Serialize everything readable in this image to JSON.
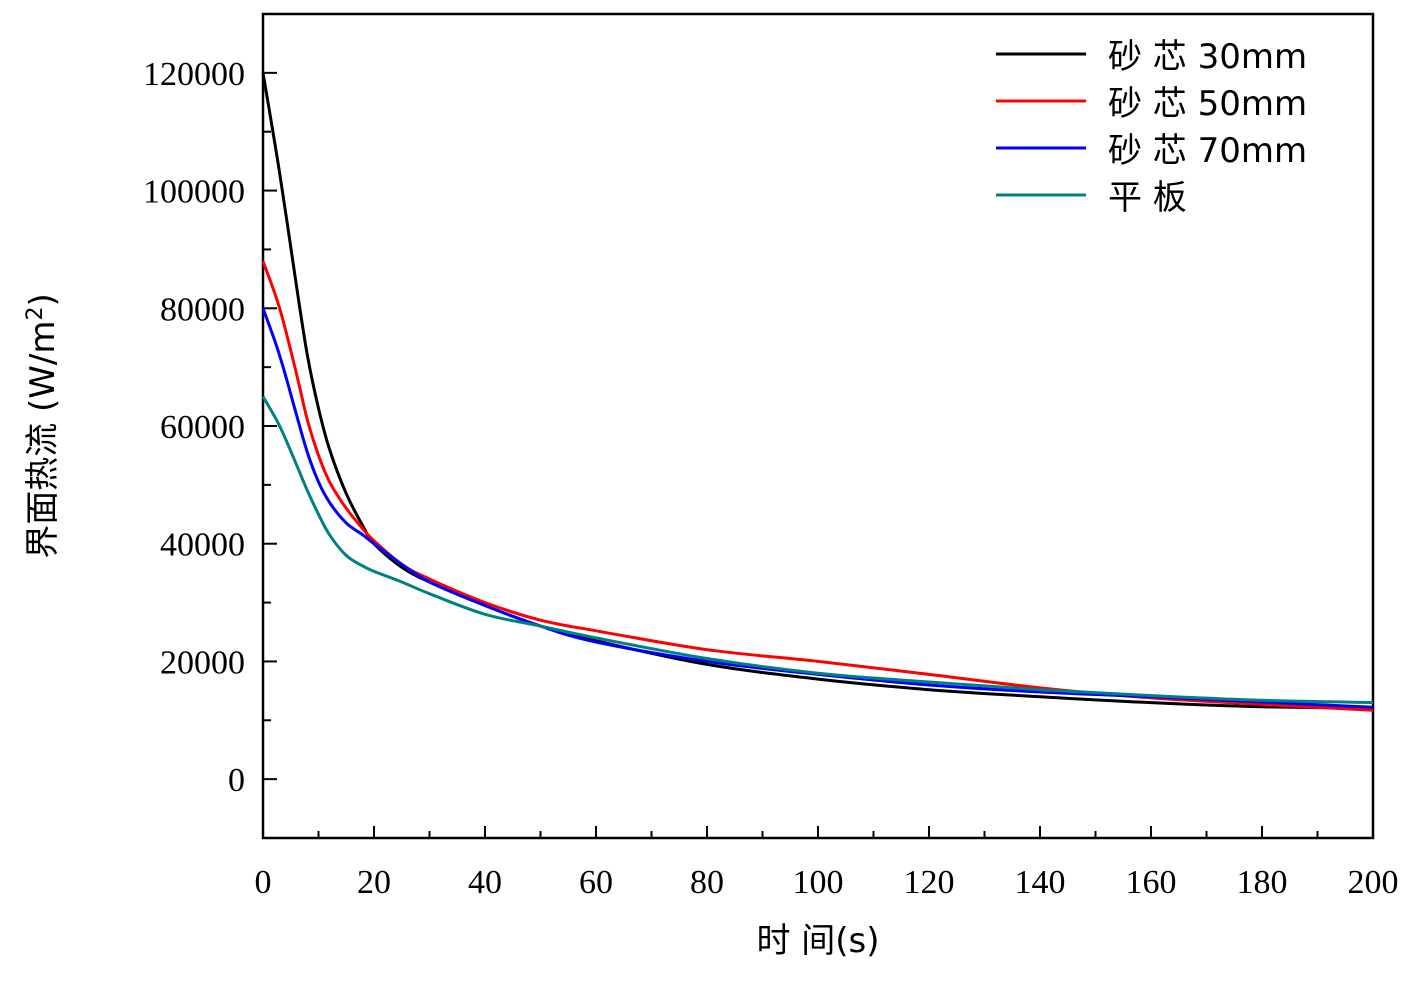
{
  "chart_data": {
    "type": "line",
    "xlabel": "时 间(s)",
    "ylabel": "界面热流 (W/m²)",
    "ylabel_parts": {
      "main": "界面热流 (W/m",
      "sup": "2",
      "close": ")"
    },
    "xlim": [
      0,
      200
    ],
    "ylim": [
      -10000,
      130000
    ],
    "xticks": [
      0,
      20,
      40,
      60,
      80,
      100,
      120,
      140,
      160,
      180,
      200
    ],
    "xtick_labels": [
      "0",
      "20",
      "40",
      "60",
      "80",
      "100",
      "120",
      "140",
      "160",
      "180",
      "200"
    ],
    "yticks": [
      0,
      20000,
      40000,
      60000,
      80000,
      100000,
      120000
    ],
    "ytick_labels": [
      "0",
      "20000",
      "40000",
      "60000",
      "80000",
      "100000",
      "120000"
    ],
    "legend_position": "top-right",
    "grid": false,
    "series": [
      {
        "name": "砂 芯 30mm",
        "color": "#000000",
        "x": [
          0,
          3,
          6,
          8,
          10,
          12,
          15,
          18,
          20,
          25,
          30,
          40,
          50,
          60,
          80,
          100,
          120,
          140,
          160,
          180,
          200
        ],
        "y": [
          120000,
          103000,
          84000,
          72000,
          63000,
          56000,
          48500,
          43000,
          40000,
          36000,
          33500,
          29500,
          26000,
          23500,
          19500,
          17000,
          15200,
          14000,
          13000,
          12300,
          12100
        ]
      },
      {
        "name": "砂 芯 50mm",
        "color": "#ff0000",
        "x": [
          0,
          3,
          6,
          8,
          10,
          12,
          15,
          18,
          20,
          25,
          30,
          40,
          50,
          60,
          80,
          100,
          120,
          140,
          160,
          180,
          200
        ],
        "y": [
          88000,
          80000,
          69000,
          61000,
          55000,
          50500,
          46000,
          42500,
          40500,
          36500,
          34000,
          30000,
          27000,
          25200,
          22000,
          20000,
          17800,
          15500,
          13800,
          12700,
          11700
        ]
      },
      {
        "name": "砂 芯 70mm",
        "color": "#0000ff",
        "x": [
          0,
          3,
          6,
          8,
          10,
          12,
          15,
          18,
          20,
          25,
          30,
          40,
          50,
          60,
          80,
          100,
          120,
          140,
          160,
          180,
          200
        ],
        "y": [
          80000,
          72000,
          62000,
          55500,
          50500,
          47000,
          43500,
          41500,
          40000,
          36500,
          33500,
          29500,
          26000,
          23300,
          20000,
          17800,
          16000,
          14800,
          14000,
          13100,
          12200
        ]
      },
      {
        "name": "平 板",
        "color": "#008080",
        "x": [
          0,
          3,
          6,
          8,
          10,
          12,
          15,
          18,
          20,
          25,
          30,
          40,
          50,
          60,
          80,
          100,
          120,
          140,
          160,
          180,
          200
        ],
        "y": [
          65000,
          60000,
          53500,
          49000,
          45000,
          41500,
          38000,
          36200,
          35300,
          33500,
          31500,
          28000,
          26000,
          24000,
          20500,
          18000,
          16500,
          15200,
          14200,
          13400,
          13000
        ]
      }
    ]
  }
}
